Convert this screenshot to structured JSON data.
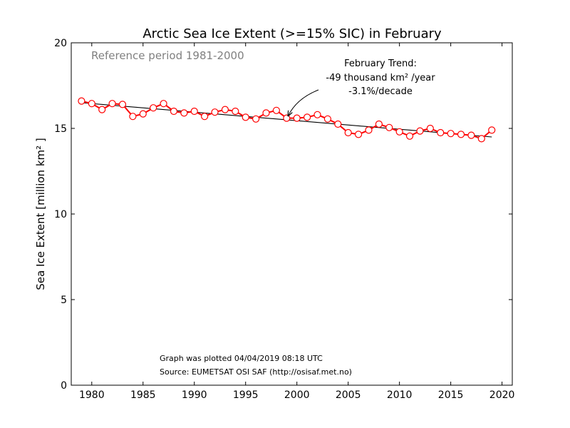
{
  "chart_data": {
    "type": "line",
    "title": "Arctic Sea Ice Extent (>=15% SIC) in February",
    "subtitle": "Reference period 1981-2000",
    "xlabel": "",
    "ylabel": "Sea Ice Extent [million km² ]",
    "xlim": [
      1978,
      2021
    ],
    "ylim": [
      0,
      20
    ],
    "xticks": [
      1980,
      1985,
      1990,
      1995,
      2000,
      2005,
      2010,
      2015,
      2020
    ],
    "yticks": [
      0,
      5,
      10,
      15,
      20
    ],
    "grid": false,
    "colors": {
      "series": "#ff0000",
      "trend": "#000000",
      "marker_fill": "#ffffff"
    },
    "series": [
      {
        "x": [
          1979,
          1980,
          1981,
          1982,
          1983,
          1984,
          1985,
          1986,
          1987,
          1988,
          1989,
          1990,
          1991,
          1992,
          1993,
          1994,
          1995,
          1996,
          1997,
          1998,
          1999,
          2000,
          2001,
          2002,
          2003,
          2004,
          2005,
          2006,
          2007,
          2008,
          2009,
          2010,
          2011,
          2012,
          2013,
          2014,
          2015,
          2016,
          2017,
          2018,
          2019
        ],
        "values": [
          16.6,
          16.45,
          16.1,
          16.45,
          16.4,
          15.7,
          15.85,
          16.2,
          16.45,
          16.0,
          15.9,
          16.0,
          15.7,
          15.95,
          16.1,
          16.0,
          15.65,
          15.55,
          15.9,
          16.05,
          15.6,
          15.6,
          15.65,
          15.8,
          15.55,
          15.25,
          14.75,
          14.65,
          14.9,
          15.25,
          15.05,
          14.8,
          14.55,
          14.85,
          15.0,
          14.75,
          14.7,
          14.65,
          14.6,
          14.4,
          14.9
        ]
      }
    ],
    "trend": {
      "x": [
        1979,
        2019
      ],
      "y": [
        16.5,
        14.5
      ]
    },
    "annotation": {
      "lines": [
        "February Trend:",
        "-49 thousand km² /year",
        "-3.1%/decade"
      ],
      "arrow_to": {
        "x": 1999,
        "y": 15.6
      }
    },
    "footer": [
      "Graph was plotted 04/04/2019 08:18 UTC",
      "Source: EUMETSAT OSI SAF (http://osisaf.met.no)"
    ]
  }
}
